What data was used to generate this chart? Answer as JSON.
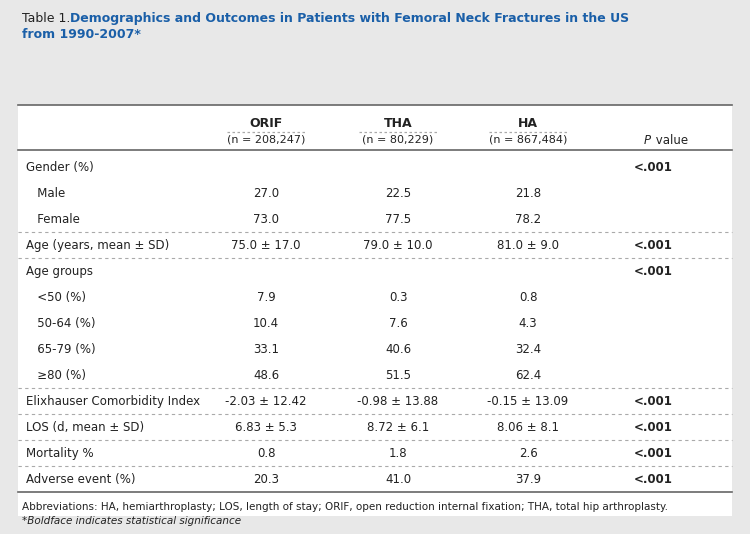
{
  "title_prefix": "Table 1. ",
  "title_line1_bold": "Demographics and Outcomes in Patients with Femoral Neck Fractures in the US",
  "title_line2_bold": "from 1990-2007*",
  "title_color": "#1A5FA8",
  "title_prefix_color": "#222222",
  "bg_color": "#E8E8E8",
  "table_bg": "#FFFFFF",
  "col_headers": [
    "ORIF",
    "THA",
    "HA"
  ],
  "col_subheaders": [
    "(n = 208,247)",
    "(n = 80,229)",
    "(n = 867,484)"
  ],
  "rows": [
    {
      "label": "Gender (%)",
      "indent": 0,
      "values": [
        "",
        "",
        "",
        "<.001"
      ],
      "pval_bold": true,
      "separator_above": "solid"
    },
    {
      "label": "   Male",
      "indent": 0,
      "values": [
        "27.0",
        "22.5",
        "21.8",
        ""
      ],
      "pval_bold": false,
      "separator_above": "none"
    },
    {
      "label": "   Female",
      "indent": 0,
      "values": [
        "73.0",
        "77.5",
        "78.2",
        ""
      ],
      "pval_bold": false,
      "separator_above": "none"
    },
    {
      "label": "Age (years, mean ± SD)",
      "indent": 0,
      "values": [
        "75.0 ± 17.0",
        "79.0 ± 10.0",
        "81.0 ± 9.0",
        "<.001"
      ],
      "pval_bold": true,
      "separator_above": "dotted"
    },
    {
      "label": "Age groups",
      "indent": 0,
      "values": [
        "",
        "",
        "",
        "<.001"
      ],
      "pval_bold": true,
      "separator_above": "dotted"
    },
    {
      "label": "   <50 (%)",
      "indent": 0,
      "values": [
        "7.9",
        "0.3",
        "0.8",
        ""
      ],
      "pval_bold": false,
      "separator_above": "none"
    },
    {
      "label": "   50-64 (%)",
      "indent": 0,
      "values": [
        "10.4",
        "7.6",
        "4.3",
        ""
      ],
      "pval_bold": false,
      "separator_above": "none"
    },
    {
      "label": "   65-79 (%)",
      "indent": 0,
      "values": [
        "33.1",
        "40.6",
        "32.4",
        ""
      ],
      "pval_bold": false,
      "separator_above": "none"
    },
    {
      "label": "   ≥80 (%)",
      "indent": 0,
      "values": [
        "48.6",
        "51.5",
        "62.4",
        ""
      ],
      "pval_bold": false,
      "separator_above": "none"
    },
    {
      "label": "Elixhauser Comorbidity Index",
      "indent": 0,
      "values": [
        "-2.03 ± 12.42",
        "-0.98 ± 13.88",
        "-0.15 ± 13.09",
        "<.001"
      ],
      "pval_bold": true,
      "separator_above": "dotted"
    },
    {
      "label": "LOS (d, mean ± SD)",
      "indent": 0,
      "values": [
        "6.83 ± 5.3",
        "8.72 ± 6.1",
        "8.06 ± 8.1",
        "<.001"
      ],
      "pval_bold": true,
      "separator_above": "dotted"
    },
    {
      "label": "Mortality %",
      "indent": 0,
      "values": [
        "0.8",
        "1.8",
        "2.6",
        "<.001"
      ],
      "pval_bold": true,
      "separator_above": "dotted"
    },
    {
      "label": "Adverse event (%)",
      "indent": 0,
      "values": [
        "20.3",
        "41.0",
        "37.9",
        "<.001"
      ],
      "pval_bold": true,
      "separator_above": "dotted"
    }
  ],
  "footnote1": "Abbreviations: HA, hemiarthroplasty; LOS, length of stay; ORIF, open reduction internal fixation; THA, total hip arthroplasty.",
  "footnote2": "*Boldface indicates statistical significance",
  "solid_line_color": "#666666",
  "dotted_line_color": "#AAAAAA",
  "text_color": "#222222",
  "pval_color": "#222222"
}
